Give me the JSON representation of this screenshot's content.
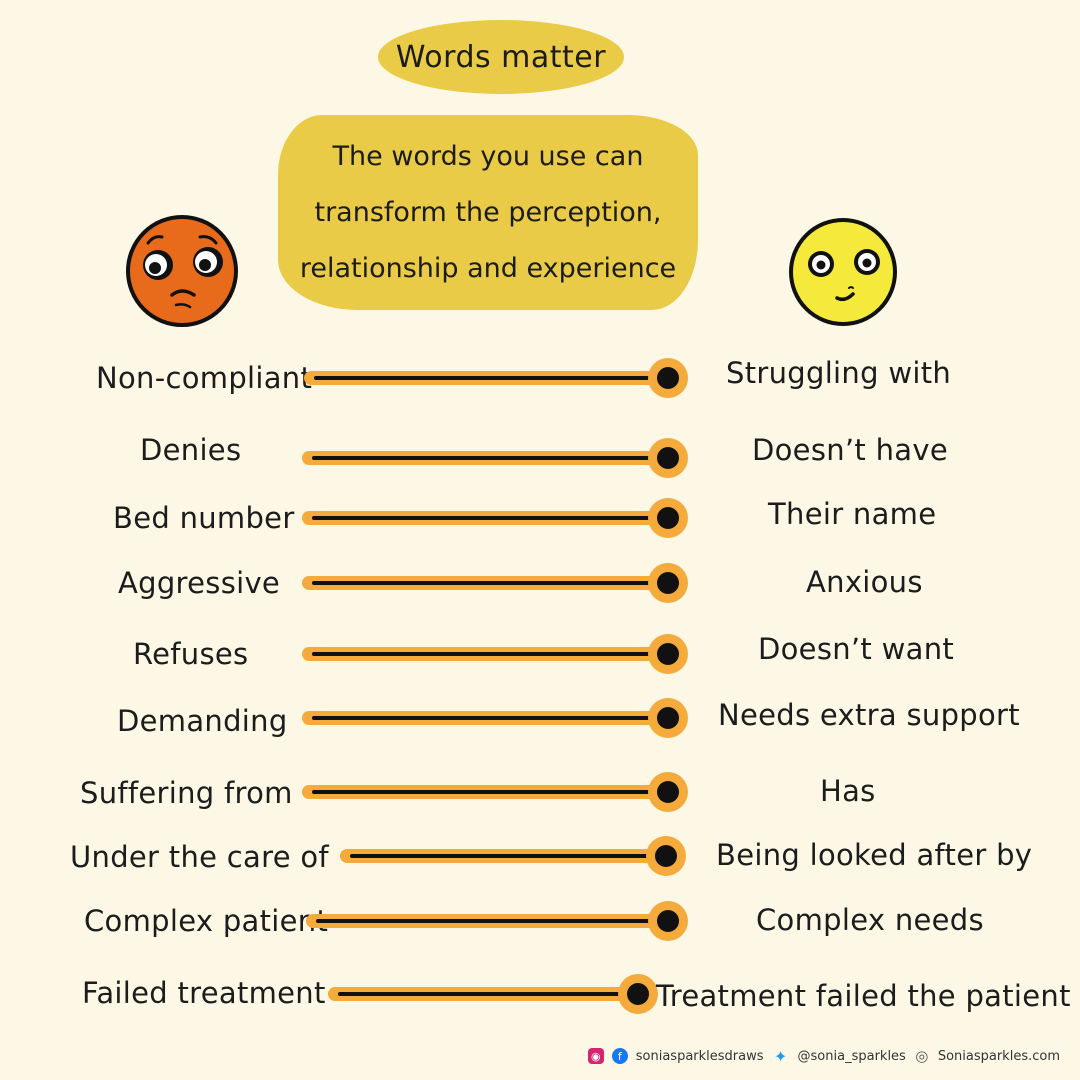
{
  "header": {
    "title": "Words matter",
    "subtitle_lines": [
      "The words you use can",
      "transform the perception,",
      "relationship and experience"
    ]
  },
  "faces": {
    "left": "worried-face",
    "right": "content-face"
  },
  "colors": {
    "background": "#fcf8e5",
    "blob": "#e9cb47",
    "slider": "#f5aa3c",
    "left_face": "#e86b1c",
    "right_face": "#f5ea3c"
  },
  "rows": [
    {
      "from": "Non-compliant",
      "to": "Struggling with"
    },
    {
      "from": "Denies",
      "to": "Doesn’t have"
    },
    {
      "from": "Bed number",
      "to": "Their name"
    },
    {
      "from": "Aggressive",
      "to": "Anxious"
    },
    {
      "from": "Refuses",
      "to": "Doesn’t want"
    },
    {
      "from": "Demanding",
      "to": "Needs extra support"
    },
    {
      "from": "Suffering from",
      "to": "Has"
    },
    {
      "from": "Under the care of",
      "to": "Being looked after by"
    },
    {
      "from": "Complex patient",
      "to": "Complex needs"
    },
    {
      "from": "Failed treatment",
      "to": "Treatment failed the patient"
    }
  ],
  "footer": {
    "instagram_icon": "instagram-icon",
    "facebook_icon": "facebook-icon",
    "instagram": "soniasparklesdraws",
    "twitter_icon": "twitter-icon",
    "twitter": "@sonia_sparkles",
    "website_icon": "globe-icon",
    "website": "Soniasparkles.com"
  }
}
